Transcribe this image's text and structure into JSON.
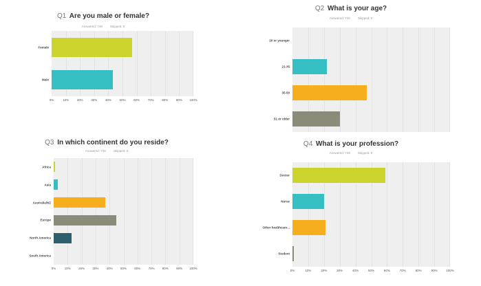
{
  "chart_data": [
    {
      "type": "bar",
      "orientation": "horizontal",
      "question_number": "Q1",
      "title": "Are you male or female?",
      "answered_label": "Answered: 749",
      "skipped_label": "Skipped: 0",
      "categories": [
        "Female",
        "Male"
      ],
      "values": [
        57,
        43
      ],
      "colors": [
        "#cbd42d",
        "#36bfc2"
      ],
      "xlim": [
        0,
        100
      ],
      "xticks": [
        "0%",
        "10%",
        "20%",
        "30%",
        "40%",
        "50%",
        "60%",
        "70%",
        "80%",
        "90%",
        "100%"
      ],
      "grid": true
    },
    {
      "type": "bar",
      "orientation": "horizontal",
      "question_number": "Q2",
      "title": "What is your age?",
      "answered_label": "Answered: 749",
      "skipped_label": "Skipped: 0",
      "categories": [
        "20 or younger",
        "21-35",
        "35-50",
        "51 or older"
      ],
      "values": [
        0,
        22,
        47,
        30
      ],
      "colors": [
        "#cbd42d",
        "#36bfc2",
        "#f6ad1e",
        "#8b8b7a"
      ],
      "xlim": [
        0,
        100
      ],
      "xticks": [],
      "grid": true
    },
    {
      "type": "bar",
      "orientation": "horizontal",
      "question_number": "Q3",
      "title": "In which continent do you reside?",
      "answered_label": "Answered: 749",
      "skipped_label": "Skipped: 0",
      "categories": [
        "Africa",
        "Asia",
        "Australia/NZ",
        "Europe",
        "North America",
        "South America"
      ],
      "values": [
        1,
        3,
        37,
        45,
        13,
        0
      ],
      "colors": [
        "#cbd42d",
        "#36bfc2",
        "#f6ad1e",
        "#8b8b7a",
        "#2e5f6d",
        "#8b8b7a"
      ],
      "xlim": [
        0,
        100
      ],
      "xticks": [
        "0%",
        "10%",
        "20%",
        "30%",
        "40%",
        "50%",
        "60%",
        "70%",
        "80%",
        "90%",
        "100%"
      ],
      "grid": true
    },
    {
      "type": "bar",
      "orientation": "horizontal",
      "question_number": "Q4",
      "title": "What is your profession?",
      "answered_label": "Answered: 749",
      "skipped_label": "Skipped: 0",
      "categories": [
        "Doctor",
        "Nurse",
        "Other healthcare...",
        "Student"
      ],
      "values": [
        59,
        20,
        21,
        1
      ],
      "colors": [
        "#cbd42d",
        "#36bfc2",
        "#f6ad1e",
        "#8b8b7a"
      ],
      "xlim": [
        0,
        100
      ],
      "xticks": [
        "0%",
        "10%",
        "20%",
        "30%",
        "40%",
        "50%",
        "60%",
        "70%",
        "80%",
        "90%",
        "100%"
      ],
      "grid": true
    }
  ]
}
